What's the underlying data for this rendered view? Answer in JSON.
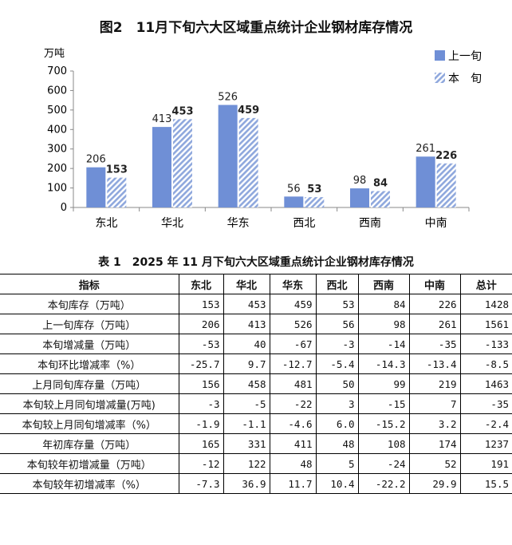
{
  "figure_title": "图2　11月下旬六大区域重点统计企业钢材库存情况",
  "chart_data": {
    "type": "bar",
    "title": "图2　11月下旬六大区域重点统计企业钢材库存情况",
    "ylabel": "万吨",
    "ylim": [
      0,
      700
    ],
    "yticks": [
      0,
      100,
      200,
      300,
      400,
      500,
      600,
      700
    ],
    "grid": false,
    "legend": "top-right",
    "categories": [
      "东北",
      "华北",
      "华东",
      "西北",
      "西南",
      "中南"
    ],
    "series": [
      {
        "name": "上一旬",
        "values": [
          206,
          413,
          526,
          56,
          98,
          261
        ],
        "color": "#6f8fd6",
        "pattern": "solid"
      },
      {
        "name": "本　旬",
        "values": [
          153,
          453,
          459,
          53,
          84,
          226
        ],
        "color": "#8fa8dd",
        "pattern": "diagonal-hatch"
      }
    ]
  },
  "table": {
    "title": "表 1　2025 年 11 月下旬六大区域重点统计企业钢材库存情况",
    "headers": [
      "指标",
      "东北",
      "华北",
      "华东",
      "西北",
      "西南",
      "中南",
      "总计"
    ],
    "rows": [
      [
        "本旬库存（万吨）",
        "153",
        "453",
        "459",
        "53",
        "84",
        "226",
        "1428"
      ],
      [
        "上一旬库存（万吨）",
        "206",
        "413",
        "526",
        "56",
        "98",
        "261",
        "1561"
      ],
      [
        "本旬增减量（万吨）",
        "-53",
        "40",
        "-67",
        "-3",
        "-14",
        "-35",
        "-133"
      ],
      [
        "本旬环比增减率（%）",
        "-25.7",
        "9.7",
        "-12.7",
        "-5.4",
        "-14.3",
        "-13.4",
        "-8.5"
      ],
      [
        "上月同旬库存量（万吨）",
        "156",
        "458",
        "481",
        "50",
        "99",
        "219",
        "1463"
      ],
      [
        "本旬较上月同旬增减量(万吨)",
        "-3",
        "-5",
        "-22",
        "3",
        "-15",
        "7",
        "-35"
      ],
      [
        "本旬较上月同旬增减率（%）",
        "-1.9",
        "-1.1",
        "-4.6",
        "6.0",
        "-15.2",
        "3.2",
        "-2.4"
      ],
      [
        "年初库存量（万吨）",
        "165",
        "331",
        "411",
        "48",
        "108",
        "174",
        "1237"
      ],
      [
        "本旬较年初增减量（万吨）",
        "-12",
        "122",
        "48",
        "5",
        "-24",
        "52",
        "191"
      ],
      [
        "本旬较年初增减率（%）",
        "-7.3",
        "36.9",
        "11.7",
        "10.4",
        "-22.2",
        "29.9",
        "15.5"
      ]
    ]
  }
}
